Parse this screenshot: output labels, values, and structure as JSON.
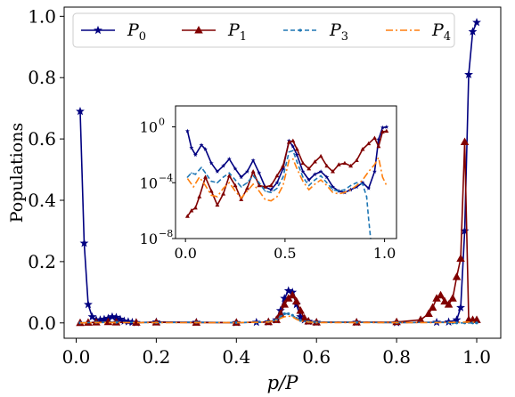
{
  "chart_data": [
    {
      "type": "line",
      "xlabel": "p/P",
      "ylabel": "Populations",
      "xlim": [
        -0.03,
        1.06
      ],
      "ylim": [
        -0.05,
        1.03
      ],
      "xticks": [
        0.0,
        0.2,
        0.4,
        0.6,
        0.8,
        1.0
      ],
      "xtick_labels": [
        "0.0",
        "0.2",
        "0.4",
        "0.6",
        "0.8",
        "1.0"
      ],
      "yticks": [
        0.0,
        0.2,
        0.4,
        0.6,
        0.8,
        1.0
      ],
      "ytick_labels": [
        "0.0",
        "0.2",
        "0.4",
        "0.6",
        "0.8",
        "1.0"
      ],
      "grid": false,
      "legend": {
        "placement": "top",
        "columns": 4
      },
      "series": [
        {
          "name": "P",
          "subscript": "0",
          "color": "#000080",
          "style": "solid",
          "marker": "star",
          "x": [
            0.01,
            0.02,
            0.03,
            0.04,
            0.05,
            0.06,
            0.07,
            0.08,
            0.09,
            0.1,
            0.11,
            0.12,
            0.13,
            0.14,
            0.15,
            0.2,
            0.3,
            0.4,
            0.45,
            0.48,
            0.5,
            0.51,
            0.52,
            0.53,
            0.54,
            0.55,
            0.56,
            0.57,
            0.58,
            0.6,
            0.7,
            0.8,
            0.9,
            0.93,
            0.95,
            0.96,
            0.97,
            0.98,
            0.99,
            1.0
          ],
          "y": [
            0.69,
            0.26,
            0.06,
            0.02,
            0.01,
            0.01,
            0.012,
            0.015,
            0.02,
            0.018,
            0.012,
            0.006,
            0.004,
            0.002,
            0.001,
            0.003,
            0.002,
            0.001,
            0.002,
            0.003,
            0.01,
            0.04,
            0.08,
            0.105,
            0.1,
            0.06,
            0.02,
            0.01,
            0.005,
            0.002,
            0.002,
            0.001,
            0.002,
            0.003,
            0.01,
            0.05,
            0.3,
            0.81,
            0.95,
            0.98
          ]
        },
        {
          "name": "P",
          "subscript": "1",
          "color": "#800000",
          "style": "solid",
          "marker": "triangle",
          "x": [
            0.01,
            0.03,
            0.05,
            0.08,
            0.1,
            0.15,
            0.2,
            0.3,
            0.4,
            0.48,
            0.5,
            0.51,
            0.52,
            0.53,
            0.54,
            0.55,
            0.56,
            0.57,
            0.58,
            0.6,
            0.7,
            0.8,
            0.86,
            0.88,
            0.89,
            0.9,
            0.91,
            0.92,
            0.93,
            0.94,
            0.95,
            0.96,
            0.97,
            0.98,
            0.99,
            1.0
          ],
          "y": [
            0.0,
            0.001,
            0.002,
            0.003,
            0.002,
            0.001,
            0.002,
            0.001,
            0.001,
            0.003,
            0.01,
            0.03,
            0.06,
            0.08,
            0.09,
            0.07,
            0.04,
            0.015,
            0.005,
            0.002,
            0.002,
            0.003,
            0.01,
            0.03,
            0.05,
            0.08,
            0.09,
            0.07,
            0.06,
            0.08,
            0.15,
            0.21,
            0.59,
            0.01,
            0.01,
            0.01
          ]
        },
        {
          "name": "P",
          "subscript": "3",
          "color": "#1f77b4",
          "style": "dashed",
          "marker": "dot",
          "x": [
            0.01,
            0.05,
            0.1,
            0.2,
            0.3,
            0.4,
            0.45,
            0.48,
            0.5,
            0.51,
            0.52,
            0.53,
            0.54,
            0.55,
            0.56,
            0.58,
            0.6,
            0.7,
            0.8,
            0.9,
            0.93,
            0.94,
            0.95,
            0.97,
            0.99,
            1.0
          ],
          "y": [
            0.0,
            0.002,
            0.002,
            0.001,
            0.002,
            0.001,
            0.002,
            0.004,
            0.01,
            0.02,
            0.03,
            0.03,
            0.025,
            0.015,
            0.008,
            0.004,
            0.002,
            0.002,
            0.001,
            0.002,
            0.001,
            0.0,
            0.0,
            0.0,
            0.0,
            0.0
          ]
        },
        {
          "name": "P",
          "subscript": "4",
          "color": "#ff7f0e",
          "style": "dashdot",
          "marker": "none",
          "x": [
            0.01,
            0.05,
            0.1,
            0.2,
            0.3,
            0.4,
            0.45,
            0.48,
            0.5,
            0.51,
            0.52,
            0.53,
            0.54,
            0.55,
            0.56,
            0.58,
            0.6,
            0.7,
            0.8,
            0.9,
            0.95,
            0.98,
            1.0
          ],
          "y": [
            0.0,
            0.001,
            0.001,
            0.001,
            0.001,
            0.001,
            0.002,
            0.003,
            0.008,
            0.015,
            0.02,
            0.022,
            0.02,
            0.012,
            0.006,
            0.003,
            0.001,
            0.001,
            0.001,
            0.001,
            0.002,
            0.003,
            0.002
          ]
        }
      ]
    },
    {
      "type": "line",
      "inset": true,
      "yscale": "log",
      "xlim": [
        -0.05,
        1.06
      ],
      "ylim_log10": [
        -8,
        1.5
      ],
      "xticks": [
        0.0,
        0.5,
        1.0
      ],
      "xtick_labels": [
        "0.0",
        "0.5",
        "1.0"
      ],
      "yticks_log10": [
        -8,
        -4,
        0
      ],
      "ytick_labels": [
        "10",
        "10",
        "10"
      ],
      "ytick_exponents": [
        "−8",
        "−4",
        "0"
      ],
      "grid": false,
      "series": [
        {
          "color": "#000080",
          "style": "solid",
          "marker": "star",
          "x": [
            0.01,
            0.03,
            0.05,
            0.08,
            0.1,
            0.13,
            0.16,
            0.19,
            0.22,
            0.25,
            0.28,
            0.31,
            0.34,
            0.37,
            0.4,
            0.43,
            0.46,
            0.49,
            0.52,
            0.54,
            0.56,
            0.59,
            0.62,
            0.65,
            0.68,
            0.71,
            0.74,
            0.77,
            0.8,
            0.83,
            0.86,
            0.89,
            0.92,
            0.95,
            0.97,
            0.99,
            1.01
          ],
          "log10_y": [
            -0.3,
            -1.5,
            -2.0,
            -1.3,
            -1.6,
            -2.6,
            -3.2,
            -2.8,
            -2.3,
            -3.0,
            -3.6,
            -3.2,
            -2.4,
            -3.3,
            -4.3,
            -4.5,
            -4.0,
            -3.0,
            -1.0,
            -1.4,
            -2.0,
            -3.2,
            -3.8,
            -3.4,
            -3.2,
            -3.6,
            -4.3,
            -4.6,
            -4.7,
            -4.5,
            -4.3,
            -4.0,
            -4.4,
            -3.2,
            -0.9,
            -0.05,
            -0.01
          ]
        },
        {
          "color": "#800000",
          "style": "solid",
          "marker": "triangle",
          "x": [
            0.01,
            0.03,
            0.05,
            0.07,
            0.1,
            0.13,
            0.16,
            0.19,
            0.22,
            0.25,
            0.28,
            0.31,
            0.34,
            0.37,
            0.4,
            0.43,
            0.46,
            0.49,
            0.52,
            0.54,
            0.56,
            0.59,
            0.62,
            0.65,
            0.68,
            0.71,
            0.74,
            0.77,
            0.8,
            0.83,
            0.86,
            0.89,
            0.92,
            0.95,
            0.97,
            0.99,
            1.01
          ],
          "log10_y": [
            -6.4,
            -6.0,
            -5.8,
            -5.0,
            -3.6,
            -4.6,
            -5.6,
            -4.8,
            -3.5,
            -4.2,
            -5.2,
            -4.4,
            -3.2,
            -4.2,
            -4.3,
            -4.2,
            -3.5,
            -2.8,
            -1.1,
            -1.0,
            -1.6,
            -2.6,
            -3.0,
            -2.5,
            -2.1,
            -2.8,
            -3.2,
            -2.7,
            -2.6,
            -2.8,
            -2.4,
            -1.6,
            -1.2,
            -0.8,
            -1.4,
            -0.35,
            -0.3
          ]
        },
        {
          "color": "#1f77b4",
          "style": "dashed",
          "marker": "dot",
          "x": [
            0.01,
            0.03,
            0.05,
            0.08,
            0.1,
            0.13,
            0.16,
            0.19,
            0.22,
            0.25,
            0.28,
            0.31,
            0.34,
            0.37,
            0.4,
            0.43,
            0.46,
            0.49,
            0.52,
            0.54,
            0.56,
            0.59,
            0.62,
            0.65,
            0.68,
            0.71,
            0.74,
            0.77,
            0.8,
            0.83,
            0.86,
            0.89,
            0.91,
            0.92,
            0.93
          ],
          "log10_y": [
            -3.6,
            -3.3,
            -3.4,
            -2.9,
            -3.3,
            -3.9,
            -4.0,
            -3.6,
            -3.3,
            -3.8,
            -4.3,
            -4.0,
            -3.5,
            -4.0,
            -4.6,
            -4.7,
            -4.4,
            -3.6,
            -1.8,
            -1.7,
            -2.5,
            -3.6,
            -4.2,
            -3.8,
            -3.5,
            -4.0,
            -4.5,
            -4.6,
            -4.5,
            -4.2,
            -4.0,
            -4.1,
            -5.0,
            -6.6,
            -8.0
          ]
        },
        {
          "color": "#ff7f0e",
          "style": "dashdot",
          "marker": "none",
          "x": [
            0.01,
            0.04,
            0.07,
            0.1,
            0.13,
            0.16,
            0.19,
            0.22,
            0.25,
            0.28,
            0.31,
            0.34,
            0.37,
            0.4,
            0.43,
            0.46,
            0.49,
            0.52,
            0.54,
            0.56,
            0.59,
            0.62,
            0.65,
            0.68,
            0.71,
            0.74,
            0.77,
            0.8,
            0.83,
            0.86,
            0.89,
            0.92,
            0.95,
            0.97,
            0.99,
            1.01
          ],
          "log10_y": [
            -3.7,
            -4.3,
            -3.6,
            -4.2,
            -4.9,
            -5.0,
            -4.4,
            -4.0,
            -4.6,
            -5.1,
            -4.6,
            -4.1,
            -4.6,
            -5.2,
            -5.3,
            -5.0,
            -4.2,
            -2.4,
            -2.3,
            -3.0,
            -3.9,
            -4.5,
            -4.1,
            -3.8,
            -4.2,
            -4.7,
            -4.8,
            -4.7,
            -4.5,
            -4.2,
            -3.8,
            -3.2,
            -2.7,
            -2.2,
            -3.6,
            -4.2
          ]
        }
      ]
    }
  ]
}
